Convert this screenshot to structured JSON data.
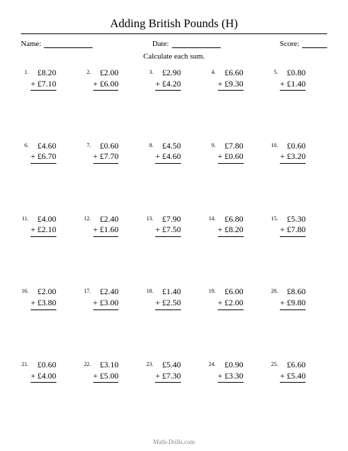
{
  "title": "Adding British Pounds (H)",
  "labels": {
    "name": "Name:",
    "date": "Date:",
    "score": "Score:"
  },
  "instruction": "Calculate each sum.",
  "currency": "£",
  "operator": "+",
  "footer": "Math-Drills.com",
  "problems": [
    {
      "n": "1.",
      "a": "8.20",
      "b": "7.10"
    },
    {
      "n": "2.",
      "a": "2.00",
      "b": "6.00"
    },
    {
      "n": "3.",
      "a": "2.90",
      "b": "4.20"
    },
    {
      "n": "4.",
      "a": "6.60",
      "b": "9.30"
    },
    {
      "n": "5.",
      "a": "0.80",
      "b": "1.40"
    },
    {
      "n": "6.",
      "a": "4.60",
      "b": "6.70"
    },
    {
      "n": "7.",
      "a": "0.60",
      "b": "7.70"
    },
    {
      "n": "8.",
      "a": "4.50",
      "b": "4.60"
    },
    {
      "n": "9.",
      "a": "7.80",
      "b": "0.60"
    },
    {
      "n": "10.",
      "a": "0.60",
      "b": "3.20"
    },
    {
      "n": "11.",
      "a": "4.00",
      "b": "2.10"
    },
    {
      "n": "12.",
      "a": "2.40",
      "b": "1.60"
    },
    {
      "n": "13.",
      "a": "7.90",
      "b": "7.50"
    },
    {
      "n": "14.",
      "a": "6.80",
      "b": "8.20"
    },
    {
      "n": "15.",
      "a": "5.30",
      "b": "7.80"
    },
    {
      "n": "16.",
      "a": "2.00",
      "b": "3.80"
    },
    {
      "n": "17.",
      "a": "2.40",
      "b": "3.00"
    },
    {
      "n": "18.",
      "a": "1.40",
      "b": "2.50"
    },
    {
      "n": "19.",
      "a": "6.00",
      "b": "2.00"
    },
    {
      "n": "20.",
      "a": "8.60",
      "b": "9.80"
    },
    {
      "n": "21.",
      "a": "0.60",
      "b": "4.00"
    },
    {
      "n": "22.",
      "a": "3.10",
      "b": "5.00"
    },
    {
      "n": "23.",
      "a": "5.40",
      "b": "7.30"
    },
    {
      "n": "24.",
      "a": "0.90",
      "b": "3.30"
    },
    {
      "n": "25.",
      "a": "6.60",
      "b": "5.40"
    }
  ]
}
